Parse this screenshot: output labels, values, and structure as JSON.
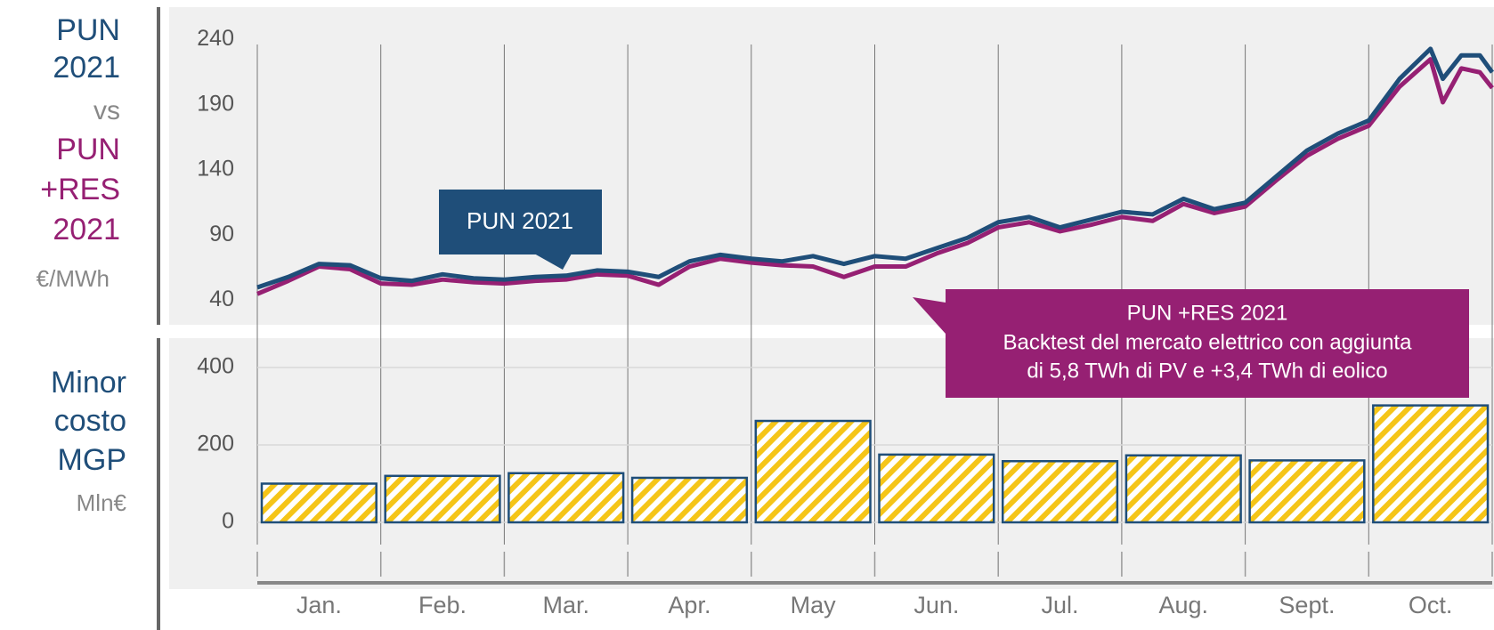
{
  "labels": {
    "top": [
      "PUN",
      "2021",
      "vs",
      "PUN",
      "+RES",
      "2021"
    ],
    "top_unit": "€/MWh",
    "bottom": [
      "Minor",
      "costo",
      "MGP"
    ],
    "bottom_unit": "Mln€"
  },
  "chart_data": [
    {
      "type": "line",
      "x": [
        0,
        0.25,
        0.5,
        0.75,
        1,
        1.25,
        1.5,
        1.75,
        2,
        2.25,
        2.5,
        2.75,
        3,
        3.25,
        3.5,
        3.75,
        4,
        4.25,
        4.5,
        4.75,
        5,
        5.25,
        5.5,
        5.75,
        6,
        6.25,
        6.5,
        6.75,
        7,
        7.25,
        7.5,
        7.75,
        8,
        8.25,
        8.5,
        8.75,
        9,
        9.25,
        9.5,
        9.6,
        9.75,
        9.9,
        10
      ],
      "xlim": [
        0,
        10
      ],
      "ylim": [
        22,
        265
      ],
      "yticks": [
        40,
        90,
        140,
        190,
        240
      ],
      "series": [
        {
          "name": "PUN 2021",
          "color": "#1f4e79",
          "values": [
            50,
            58,
            68,
            67,
            57,
            55,
            60,
            57,
            56,
            58,
            59,
            63,
            62,
            58,
            70,
            75,
            72,
            70,
            74,
            68,
            74,
            72,
            80,
            88,
            100,
            104,
            96,
            102,
            108,
            106,
            118,
            110,
            115,
            135,
            155,
            168,
            178,
            210,
            233,
            210,
            228,
            228,
            215
          ]
        },
        {
          "name": "PUN +RES 2021",
          "color": "#962073",
          "values": [
            45,
            55,
            66,
            64,
            53,
            52,
            56,
            54,
            53,
            55,
            56,
            60,
            59,
            52,
            66,
            72,
            69,
            67,
            66,
            58,
            66,
            66,
            76,
            84,
            96,
            100,
            93,
            98,
            104,
            101,
            114,
            107,
            112,
            132,
            151,
            164,
            174,
            204,
            225,
            192,
            218,
            215,
            203
          ]
        }
      ],
      "annotations": [
        "PUN 2021",
        "PUN +RES 2021",
        "Backtest del mercato elettrico con aggiunta",
        "di 5,8 TWh di PV e +3,4 TWh di eolico"
      ]
    },
    {
      "type": "bar",
      "categories": [
        "Jan.",
        "Feb.",
        "Mar.",
        "Apr.",
        "May",
        "Jun.",
        "Jul.",
        "Aug.",
        "Sept.",
        "Oct."
      ],
      "values": [
        100,
        120,
        127,
        115,
        262,
        175,
        158,
        173,
        160,
        302
      ],
      "color": "#f5c518",
      "ylim": [
        0,
        400
      ],
      "yticks": [
        0,
        200,
        400
      ],
      "grid": true
    }
  ]
}
